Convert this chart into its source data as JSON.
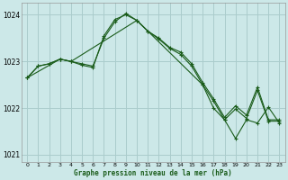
{
  "title": "Graphe pression niveau de la mer (hPa)",
  "background_color": "#cce8e8",
  "grid_color": "#aacccc",
  "line_color": "#1a5c1a",
  "marker_color": "#1a5c1a",
  "ylim": [
    1020.85,
    1024.25
  ],
  "yticks": [
    1021,
    1022,
    1023,
    1024
  ],
  "xlim": [
    -0.5,
    23.5
  ],
  "xticks": [
    0,
    1,
    2,
    3,
    4,
    5,
    6,
    7,
    8,
    9,
    10,
    11,
    12,
    13,
    14,
    15,
    16,
    17,
    18,
    19,
    20,
    21,
    22,
    23
  ],
  "series1_x": [
    0,
    1,
    2,
    3,
    4,
    5,
    6,
    7,
    8,
    9,
    10,
    11,
    12,
    13,
    14,
    15,
    16,
    17,
    18,
    19,
    20,
    21,
    22,
    23
  ],
  "series1_y": [
    1022.65,
    1022.9,
    1022.95,
    1023.05,
    1023.0,
    1022.95,
    1022.9,
    1023.5,
    1023.85,
    1024.03,
    1023.88,
    1023.65,
    1023.5,
    1023.3,
    1023.2,
    1022.95,
    1022.55,
    1022.2,
    1021.8,
    1022.05,
    1021.85,
    1022.45,
    1021.75,
    1021.75
  ],
  "series2_x": [
    0,
    1,
    2,
    3,
    4,
    5,
    6,
    7,
    8,
    9,
    10,
    11,
    12,
    13,
    14,
    15,
    16,
    17,
    18,
    19,
    20,
    21,
    22,
    23
  ],
  "series2_y": [
    1022.65,
    1022.9,
    1022.95,
    1023.05,
    1023.0,
    1022.92,
    1022.87,
    1023.55,
    1023.9,
    1024.0,
    1023.88,
    1023.65,
    1023.48,
    1023.28,
    1023.15,
    1022.9,
    1022.5,
    1022.15,
    1021.75,
    1021.98,
    1021.78,
    1022.38,
    1021.72,
    1021.72
  ],
  "series3_x": [
    0,
    3,
    4,
    10,
    16,
    17,
    18,
    19,
    20,
    21,
    22,
    23
  ],
  "series3_y": [
    1022.65,
    1023.05,
    1023.0,
    1023.88,
    1022.5,
    1022.0,
    1021.75,
    1021.35,
    1021.75,
    1021.68,
    1022.02,
    1021.68
  ]
}
